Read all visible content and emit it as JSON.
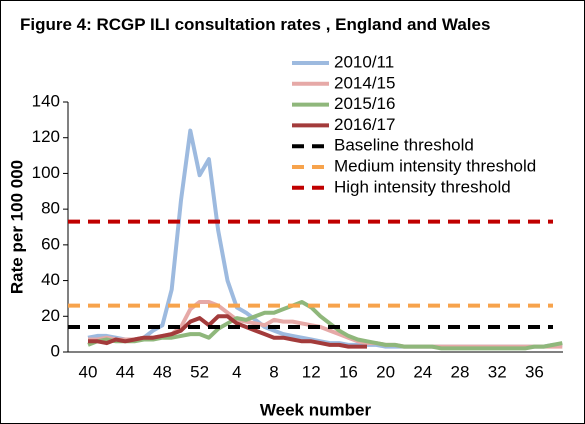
{
  "chart_data": {
    "type": "line",
    "title": "Figure 4: RCGP ILI consultation rates , England and Wales",
    "ylabel": "Rate per 100 000",
    "xlabel": "Week number",
    "categories": [
      40,
      null,
      null,
      null,
      44,
      null,
      null,
      null,
      48,
      null,
      null,
      null,
      52,
      null,
      null,
      null,
      4,
      null,
      null,
      null,
      8,
      null,
      null,
      null,
      12,
      null,
      null,
      null,
      16,
      null,
      null,
      null,
      20,
      null,
      null,
      null,
      24,
      null,
      null,
      null,
      28,
      null,
      null,
      null,
      32,
      null,
      null,
      null,
      36,
      null,
      null,
      null
    ],
    "ylim": [
      0,
      140
    ],
    "yticks": [
      0,
      20,
      40,
      60,
      80,
      100,
      120,
      140
    ],
    "series": [
      {
        "name": "2010/11",
        "color": "#9dbadf",
        "values": [
          8,
          9,
          9,
          8,
          7,
          7,
          8,
          12,
          15,
          35,
          85,
          124,
          99,
          108,
          68,
          40,
          25,
          22,
          18,
          14,
          12,
          10,
          9,
          8,
          7,
          6,
          5,
          5,
          4,
          4,
          4,
          4,
          3,
          3,
          3,
          3,
          3,
          3,
          3,
          3,
          3,
          3,
          3,
          3,
          3,
          3,
          3,
          3,
          3,
          3,
          4,
          4
        ]
      },
      {
        "name": "2014/15",
        "color": "#e6a9a7",
        "values": [
          7,
          7,
          8,
          7,
          7,
          7,
          8,
          8,
          9,
          10,
          14,
          24,
          28,
          28,
          26,
          22,
          18,
          17,
          16,
          15,
          18,
          17,
          17,
          16,
          15,
          14,
          12,
          10,
          8,
          6,
          5,
          5,
          4,
          4,
          3,
          3,
          3,
          3,
          3,
          3,
          3,
          3,
          3,
          3,
          3,
          3,
          3,
          3,
          3,
          3,
          3,
          3
        ]
      },
      {
        "name": "2015/16",
        "color": "#8fb77b",
        "values": [
          4,
          6,
          7,
          6,
          6,
          6,
          7,
          7,
          8,
          8,
          9,
          10,
          10,
          8,
          13,
          16,
          19,
          18,
          20,
          22,
          22,
          24,
          26,
          28,
          25,
          20,
          16,
          12,
          9,
          7,
          6,
          5,
          4,
          4,
          3,
          3,
          3,
          3,
          2,
          2,
          2,
          2,
          2,
          2,
          2,
          2,
          2,
          2,
          3,
          3,
          4,
          5
        ]
      },
      {
        "name": "2016/17",
        "color": "#a33b3b",
        "values": [
          6,
          6,
          5,
          7,
          6,
          7,
          8,
          8,
          9,
          10,
          12,
          17,
          19,
          15,
          20,
          20,
          16,
          14,
          12,
          10,
          8,
          8,
          7,
          6,
          6,
          5,
          4,
          4,
          3,
          3,
          3,
          null,
          null,
          null,
          null,
          null,
          null,
          null,
          null,
          null,
          null,
          null,
          null,
          null,
          null,
          null,
          null,
          null,
          null,
          null,
          null,
          null
        ]
      }
    ],
    "thresholds": [
      {
        "name": "Baseline threshold",
        "color": "#000000",
        "value": 14
      },
      {
        "name": "Medium intensity threshold",
        "color": "#f7a34c",
        "value": 26
      },
      {
        "name": "High intensity threshold",
        "color": "#c00000",
        "value": 73
      }
    ]
  }
}
